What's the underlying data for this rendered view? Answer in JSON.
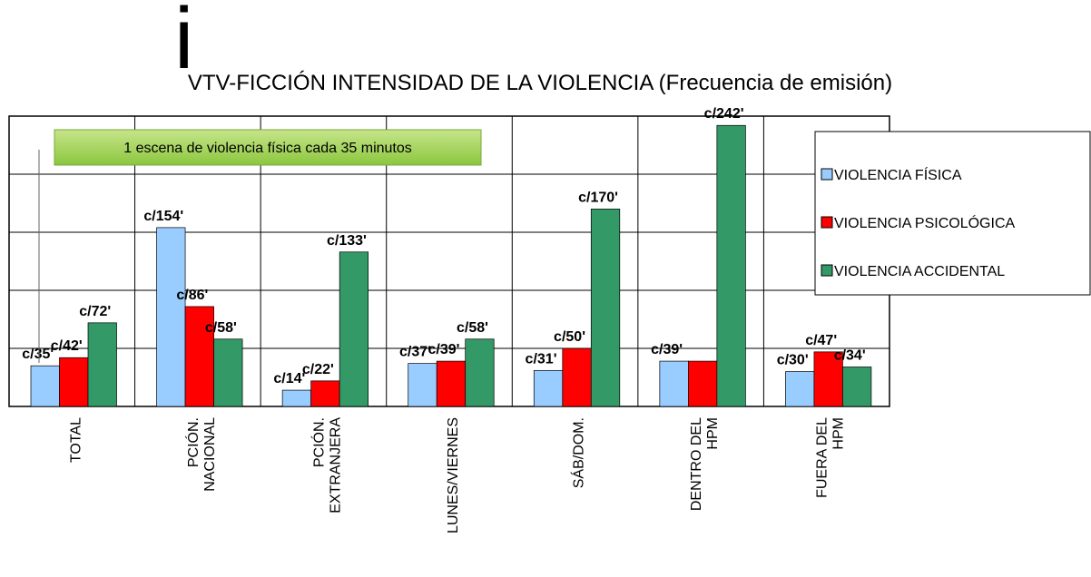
{
  "chart_data": {
    "type": "bar",
    "title_prefix": "i",
    "title": "VTV-FICCIÓN INTENSIDAD DE LA VIOLENCIA (Frecuencia de emisión)",
    "annotation": "1 escena de violencia física cada 35 minutos",
    "categories": [
      "TOTAL",
      "PCIÓN.\nNACIONAL",
      "PCIÓN.\nEXTRANJERA",
      "LUNES/VIERNES",
      "SÁB/DOM.",
      "DENTRO DEL\nHPM",
      "FUERA DEL\nHPM"
    ],
    "series": [
      {
        "name": "VIOLENCIA FÍSICA",
        "color": "#99ccff",
        "values": [
          35,
          154,
          14,
          37,
          31,
          39,
          30
        ],
        "value_labels": [
          "c/35'",
          "c/154'",
          "c/14'",
          "c/37'",
          "c/31'",
          "c/39'",
          "c/30'"
        ]
      },
      {
        "name": "VIOLENCIA PSICOLÓGICA",
        "color": "#ff0000",
        "values": [
          42,
          86,
          22,
          39,
          50,
          39,
          47
        ],
        "value_labels": [
          "c/42'",
          "c/86'",
          "c/22'",
          "c/39'",
          "c/50'",
          null,
          "c/47'"
        ]
      },
      {
        "name": "VIOLENCIA ACCIDENTAL",
        "color": "#339966",
        "values": [
          72,
          58,
          133,
          58,
          170,
          242,
          34
        ],
        "value_labels": [
          "c/72'",
          "c/58'",
          "c/133'",
          "c/58'",
          "c/170'",
          "c/242'",
          "c/34'"
        ]
      }
    ],
    "ylim": [
      0,
      250
    ],
    "yticks": [
      0,
      50,
      100,
      150,
      200,
      250
    ],
    "grid": true,
    "legend": "right"
  }
}
